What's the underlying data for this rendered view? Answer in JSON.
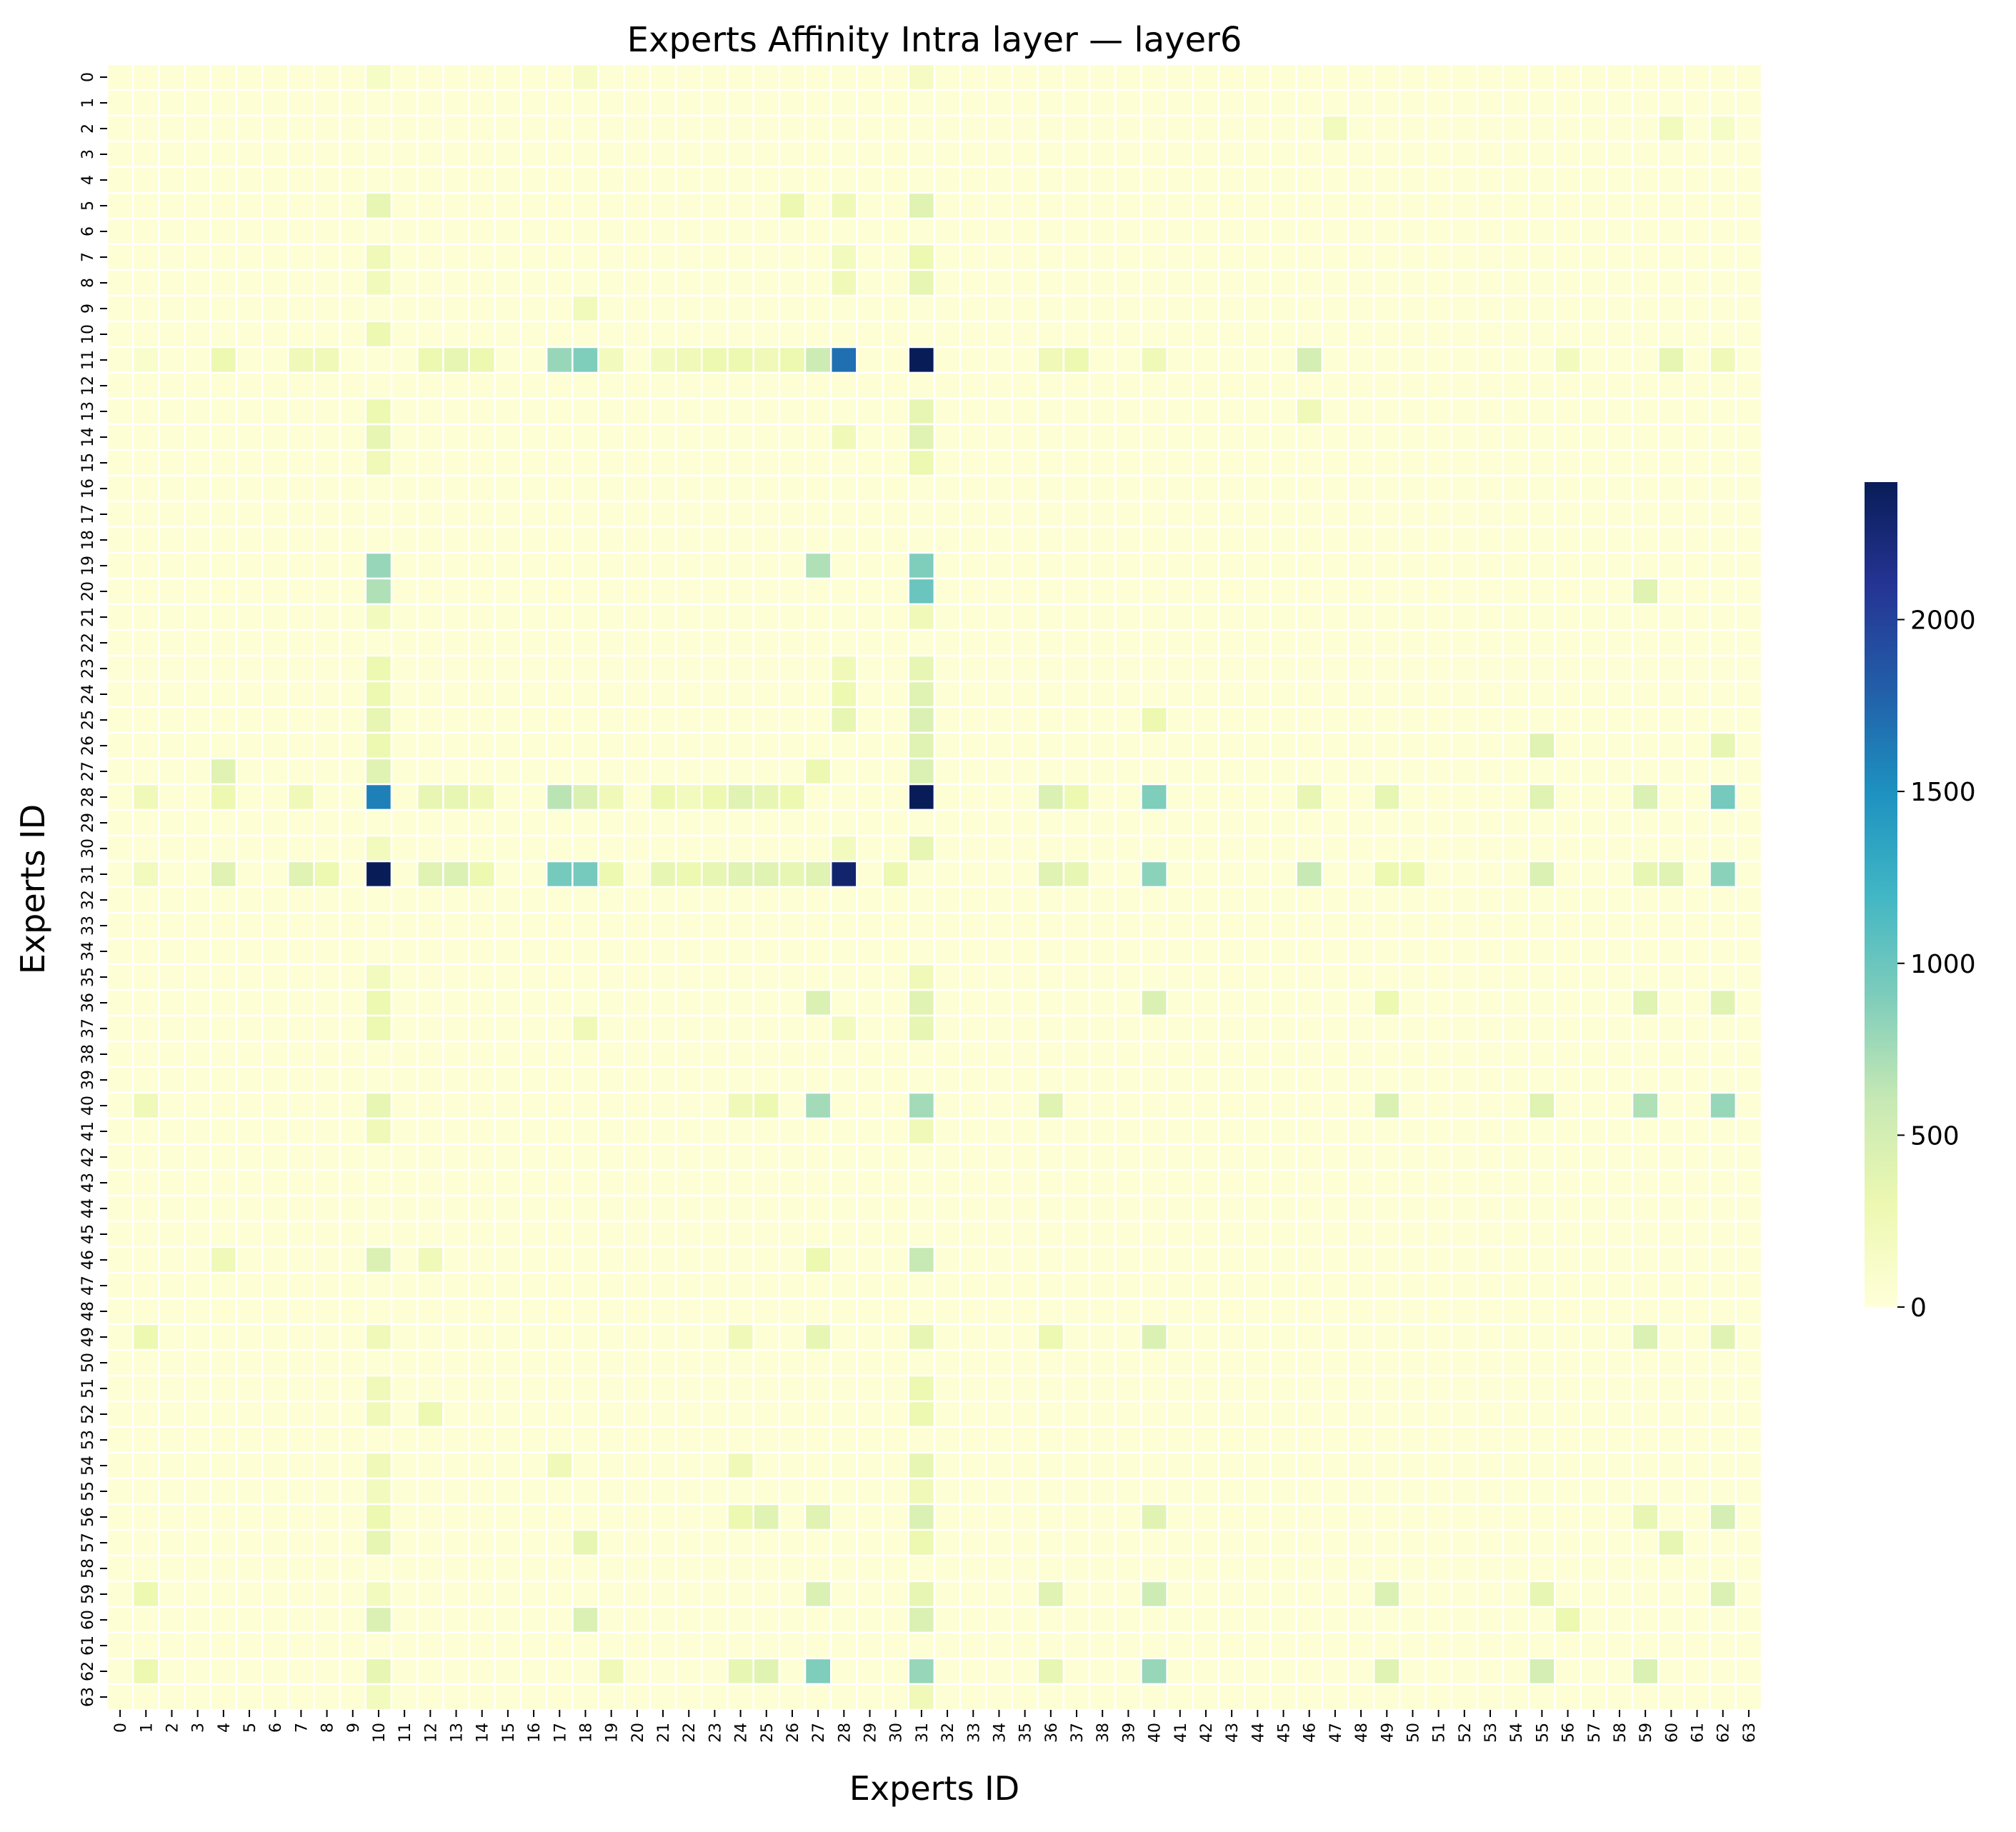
{
  "chart_data": {
    "type": "heatmap",
    "title": "Experts Affinity Intra layer — layer6",
    "xlabel": "Experts ID",
    "ylabel": "Experts ID",
    "x_categories": [
      "0",
      "1",
      "2",
      "3",
      "4",
      "5",
      "6",
      "7",
      "8",
      "9",
      "10",
      "11",
      "12",
      "13",
      "14",
      "15",
      "16",
      "17",
      "18",
      "19",
      "20",
      "21",
      "22",
      "23",
      "24",
      "25",
      "26",
      "27",
      "28",
      "29",
      "30",
      "31",
      "32",
      "33",
      "34",
      "35",
      "36",
      "37",
      "38",
      "39",
      "40",
      "41",
      "42",
      "43",
      "44",
      "45",
      "46",
      "47",
      "48",
      "49",
      "50",
      "51",
      "52",
      "53",
      "54",
      "55",
      "56",
      "57",
      "58",
      "59",
      "60",
      "61",
      "62",
      "63"
    ],
    "y_categories": [
      "0",
      "1",
      "2",
      "3",
      "4",
      "5",
      "6",
      "7",
      "8",
      "9",
      "10",
      "11",
      "12",
      "13",
      "14",
      "15",
      "16",
      "17",
      "18",
      "19",
      "20",
      "21",
      "22",
      "23",
      "24",
      "25",
      "26",
      "27",
      "28",
      "29",
      "30",
      "31",
      "32",
      "33",
      "34",
      "35",
      "36",
      "37",
      "38",
      "39",
      "40",
      "41",
      "42",
      "43",
      "44",
      "45",
      "46",
      "47",
      "48",
      "49",
      "50",
      "51",
      "52",
      "53",
      "54",
      "55",
      "56",
      "57",
      "58",
      "59",
      "60",
      "61",
      "62",
      "63"
    ],
    "colormap": "YlGnBu",
    "color_range": [
      0,
      2400
    ],
    "colorbar_ticks": [
      0,
      500,
      1000,
      1500,
      2000
    ],
    "baseline_value": 40,
    "cells": [
      [
        0,
        10,
        150
      ],
      [
        0,
        18,
        140
      ],
      [
        0,
        31,
        170
      ],
      [
        2,
        47,
        200
      ],
      [
        2,
        60,
        200
      ],
      [
        2,
        62,
        150
      ],
      [
        5,
        10,
        350
      ],
      [
        5,
        31,
        400
      ],
      [
        5,
        26,
        300
      ],
      [
        5,
        28,
        250
      ],
      [
        7,
        10,
        250
      ],
      [
        7,
        31,
        300
      ],
      [
        7,
        28,
        200
      ],
      [
        8,
        10,
        230
      ],
      [
        8,
        31,
        350
      ],
      [
        8,
        28,
        250
      ],
      [
        9,
        18,
        230
      ],
      [
        10,
        10,
        300
      ],
      [
        11,
        1,
        100
      ],
      [
        11,
        4,
        300
      ],
      [
        11,
        7,
        250
      ],
      [
        11,
        8,
        250
      ],
      [
        11,
        12,
        300
      ],
      [
        11,
        13,
        350
      ],
      [
        11,
        14,
        300
      ],
      [
        11,
        17,
        800
      ],
      [
        11,
        18,
        900
      ],
      [
        11,
        19,
        200
      ],
      [
        11,
        21,
        200
      ],
      [
        11,
        22,
        250
      ],
      [
        11,
        23,
        300
      ],
      [
        11,
        24,
        300
      ],
      [
        11,
        25,
        250
      ],
      [
        11,
        26,
        300
      ],
      [
        11,
        27,
        550
      ],
      [
        11,
        28,
        1700
      ],
      [
        11,
        31,
        2400
      ],
      [
        11,
        36,
        250
      ],
      [
        11,
        37,
        300
      ],
      [
        11,
        40,
        250
      ],
      [
        11,
        46,
        500
      ],
      [
        11,
        56,
        200
      ],
      [
        11,
        60,
        350
      ],
      [
        11,
        62,
        250
      ],
      [
        13,
        10,
        300
      ],
      [
        13,
        31,
        350
      ],
      [
        13,
        46,
        250
      ],
      [
        14,
        10,
        350
      ],
      [
        14,
        31,
        400
      ],
      [
        14,
        28,
        250
      ],
      [
        15,
        10,
        250
      ],
      [
        15,
        31,
        300
      ],
      [
        19,
        10,
        800
      ],
      [
        19,
        31,
        900
      ],
      [
        19,
        27,
        700
      ],
      [
        20,
        10,
        700
      ],
      [
        20,
        31,
        1000
      ],
      [
        20,
        59,
        400
      ],
      [
        21,
        10,
        200
      ],
      [
        21,
        31,
        250
      ],
      [
        23,
        10,
        300
      ],
      [
        23,
        31,
        350
      ],
      [
        23,
        28,
        250
      ],
      [
        24,
        10,
        300
      ],
      [
        24,
        31,
        400
      ],
      [
        24,
        28,
        300
      ],
      [
        25,
        10,
        350
      ],
      [
        25,
        31,
        450
      ],
      [
        25,
        28,
        350
      ],
      [
        25,
        40,
        300
      ],
      [
        26,
        10,
        300
      ],
      [
        26,
        31,
        400
      ],
      [
        26,
        55,
        400
      ],
      [
        26,
        62,
        350
      ],
      [
        27,
        10,
        400
      ],
      [
        27,
        31,
        450
      ],
      [
        27,
        4,
        400
      ],
      [
        27,
        27,
        300
      ],
      [
        28,
        10,
        1600
      ],
      [
        28,
        31,
        2400
      ],
      [
        28,
        1,
        250
      ],
      [
        28,
        4,
        300
      ],
      [
        28,
        7,
        250
      ],
      [
        28,
        12,
        350
      ],
      [
        28,
        13,
        350
      ],
      [
        28,
        14,
        250
      ],
      [
        28,
        17,
        650
      ],
      [
        28,
        18,
        450
      ],
      [
        28,
        19,
        250
      ],
      [
        28,
        21,
        300
      ],
      [
        28,
        22,
        200
      ],
      [
        28,
        23,
        300
      ],
      [
        28,
        24,
        400
      ],
      [
        28,
        25,
        350
      ],
      [
        28,
        26,
        300
      ],
      [
        28,
        36,
        450
      ],
      [
        28,
        37,
        300
      ],
      [
        28,
        40,
        900
      ],
      [
        28,
        46,
        350
      ],
      [
        28,
        49,
        350
      ],
      [
        28,
        55,
        400
      ],
      [
        28,
        59,
        450
      ],
      [
        28,
        62,
        950
      ],
      [
        30,
        10,
        200
      ],
      [
        30,
        31,
        350
      ],
      [
        30,
        28,
        200
      ],
      [
        31,
        10,
        2400
      ],
      [
        31,
        28,
        2300
      ],
      [
        31,
        1,
        200
      ],
      [
        31,
        4,
        400
      ],
      [
        31,
        7,
        400
      ],
      [
        31,
        8,
        300
      ],
      [
        31,
        12,
        400
      ],
      [
        31,
        13,
        450
      ],
      [
        31,
        14,
        300
      ],
      [
        31,
        17,
        950
      ],
      [
        31,
        18,
        950
      ],
      [
        31,
        19,
        300
      ],
      [
        31,
        21,
        350
      ],
      [
        31,
        22,
        300
      ],
      [
        31,
        23,
        350
      ],
      [
        31,
        24,
        400
      ],
      [
        31,
        25,
        400
      ],
      [
        31,
        26,
        350
      ],
      [
        31,
        27,
        400
      ],
      [
        31,
        30,
        300
      ],
      [
        31,
        36,
        400
      ],
      [
        31,
        37,
        350
      ],
      [
        31,
        40,
        850
      ],
      [
        31,
        46,
        600
      ],
      [
        31,
        49,
        300
      ],
      [
        31,
        50,
        300
      ],
      [
        31,
        55,
        450
      ],
      [
        31,
        59,
        350
      ],
      [
        31,
        60,
        400
      ],
      [
        31,
        62,
        850
      ],
      [
        35,
        10,
        200
      ],
      [
        35,
        31,
        250
      ],
      [
        36,
        10,
        300
      ],
      [
        36,
        27,
        450
      ],
      [
        36,
        31,
        400
      ],
      [
        36,
        40,
        450
      ],
      [
        36,
        49,
        300
      ],
      [
        36,
        59,
        400
      ],
      [
        36,
        62,
        400
      ],
      [
        37,
        10,
        300
      ],
      [
        37,
        18,
        250
      ],
      [
        37,
        31,
        350
      ],
      [
        37,
        28,
        200
      ],
      [
        40,
        10,
        350
      ],
      [
        40,
        27,
        750
      ],
      [
        40,
        31,
        750
      ],
      [
        40,
        1,
        250
      ],
      [
        40,
        36,
        400
      ],
      [
        40,
        49,
        450
      ],
      [
        40,
        55,
        400
      ],
      [
        40,
        59,
        700
      ],
      [
        40,
        62,
        800
      ],
      [
        40,
        24,
        250
      ],
      [
        40,
        25,
        300
      ],
      [
        41,
        10,
        250
      ],
      [
        41,
        31,
        250
      ],
      [
        46,
        10,
        450
      ],
      [
        46,
        31,
        600
      ],
      [
        46,
        4,
        250
      ],
      [
        46,
        12,
        250
      ],
      [
        46,
        27,
        300
      ],
      [
        49,
        1,
        300
      ],
      [
        49,
        10,
        250
      ],
      [
        49,
        27,
        350
      ],
      [
        49,
        31,
        350
      ],
      [
        49,
        36,
        300
      ],
      [
        49,
        40,
        450
      ],
      [
        49,
        59,
        450
      ],
      [
        49,
        62,
        400
      ],
      [
        49,
        24,
        250
      ],
      [
        51,
        10,
        250
      ],
      [
        51,
        31,
        300
      ],
      [
        52,
        10,
        250
      ],
      [
        52,
        12,
        300
      ],
      [
        52,
        31,
        300
      ],
      [
        54,
        10,
        250
      ],
      [
        54,
        17,
        250
      ],
      [
        54,
        31,
        350
      ],
      [
        54,
        24,
        250
      ],
      [
        55,
        10,
        200
      ],
      [
        55,
        31,
        250
      ],
      [
        56,
        10,
        300
      ],
      [
        56,
        25,
        400
      ],
      [
        56,
        27,
        400
      ],
      [
        56,
        31,
        450
      ],
      [
        56,
        40,
        400
      ],
      [
        56,
        59,
        350
      ],
      [
        56,
        62,
        500
      ],
      [
        56,
        24,
        300
      ],
      [
        57,
        10,
        350
      ],
      [
        57,
        18,
        350
      ],
      [
        57,
        31,
        300
      ],
      [
        57,
        60,
        350
      ],
      [
        59,
        1,
        300
      ],
      [
        59,
        10,
        200
      ],
      [
        59,
        27,
        450
      ],
      [
        59,
        31,
        350
      ],
      [
        59,
        36,
        400
      ],
      [
        59,
        40,
        550
      ],
      [
        59,
        49,
        450
      ],
      [
        59,
        55,
        350
      ],
      [
        59,
        62,
        450
      ],
      [
        60,
        10,
        450
      ],
      [
        60,
        18,
        450
      ],
      [
        60,
        31,
        450
      ],
      [
        60,
        56,
        300
      ],
      [
        62,
        1,
        300
      ],
      [
        62,
        10,
        350
      ],
      [
        62,
        24,
        350
      ],
      [
        62,
        25,
        400
      ],
      [
        62,
        27,
        900
      ],
      [
        62,
        31,
        800
      ],
      [
        62,
        36,
        350
      ],
      [
        62,
        40,
        800
      ],
      [
        62,
        49,
        400
      ],
      [
        62,
        55,
        500
      ],
      [
        62,
        59,
        450
      ],
      [
        62,
        19,
        250
      ],
      [
        63,
        10,
        200
      ],
      [
        63,
        31,
        250
      ]
    ]
  }
}
